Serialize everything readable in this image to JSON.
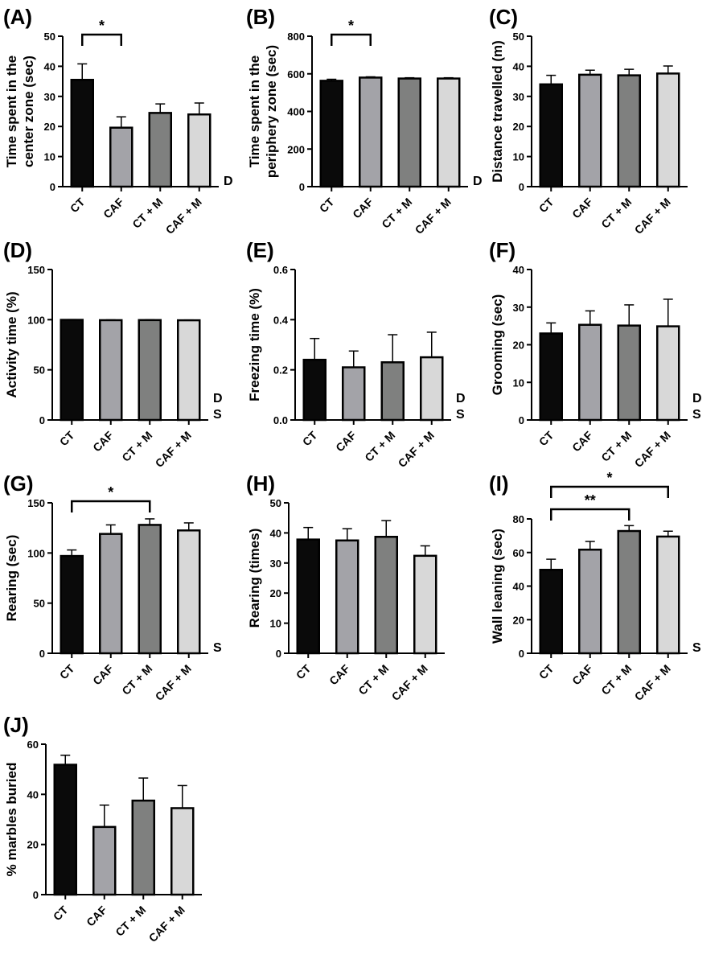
{
  "chart_data": [
    {
      "panel": "(A)",
      "type": "bar",
      "categories": [
        "CT",
        "CAF",
        "CT + M",
        "CAF + M"
      ],
      "values": [
        35.5,
        19.6,
        24.5,
        24.0
      ],
      "errors": [
        5.3,
        3.6,
        3.0,
        3.8
      ],
      "ylabel": [
        "Time spent in the",
        "center zone (sec)"
      ],
      "ylim": [
        0,
        50
      ],
      "yticks": [
        0,
        10,
        20,
        30,
        40,
        50
      ],
      "annotations": [
        {
          "from": 0,
          "to": 1,
          "label": "*"
        }
      ],
      "side_labels": [
        "D"
      ]
    },
    {
      "panel": "(B)",
      "type": "bar",
      "categories": [
        "CT",
        "CAF",
        "CT + M",
        "CAF + M"
      ],
      "values": [
        563,
        580,
        575,
        575
      ],
      "errors": [
        8,
        4,
        4,
        4
      ],
      "ylabel": [
        "Time spent in the",
        "periphery zone (sec)"
      ],
      "ylim": [
        0,
        800
      ],
      "yticks": [
        0,
        200,
        400,
        600,
        800
      ],
      "annotations": [
        {
          "from": 0,
          "to": 1,
          "label": "*"
        }
      ],
      "side_labels": [
        "D"
      ]
    },
    {
      "panel": "(C)",
      "type": "bar",
      "categories": [
        "CT",
        "CAF",
        "CT + M",
        "CAF + M"
      ],
      "values": [
        34.0,
        37.2,
        37.0,
        37.6
      ],
      "errors": [
        3.0,
        1.5,
        2.0,
        2.5
      ],
      "ylabel": [
        "Distance travelled (m)"
      ],
      "ylim": [
        0,
        50
      ],
      "yticks": [
        0,
        10,
        20,
        30,
        40,
        50
      ],
      "annotations": [],
      "side_labels": []
    },
    {
      "panel": "(D)",
      "type": "bar",
      "categories": [
        "CT",
        "CAF",
        "CT + M",
        "CAF + M"
      ],
      "values": [
        99.8,
        99.5,
        99.6,
        99.4
      ],
      "errors": [
        0.3,
        0.3,
        0.3,
        0.3
      ],
      "ylabel": [
        "Activity time (%)"
      ],
      "ylim": [
        0,
        150
      ],
      "yticks": [
        0,
        50,
        100,
        150
      ],
      "annotations": [],
      "side_labels": [
        "D",
        "S"
      ]
    },
    {
      "panel": "(E)",
      "type": "bar",
      "categories": [
        "CT",
        "CAF",
        "CT + M",
        "CAF + M"
      ],
      "values": [
        0.24,
        0.21,
        0.23,
        0.25
      ],
      "errors": [
        0.085,
        0.065,
        0.11,
        0.1
      ],
      "ylabel": [
        "Freezing time (%)"
      ],
      "ylim": [
        0,
        0.6
      ],
      "yticks": [
        "0.0",
        "0.2",
        "0.4",
        "0.6"
      ],
      "annotations": [],
      "side_labels": [
        "D",
        "S"
      ]
    },
    {
      "panel": "(F)",
      "type": "bar",
      "categories": [
        "CT",
        "CAF",
        "CT + M",
        "CAF + M"
      ],
      "values": [
        23.0,
        25.3,
        25.1,
        24.9
      ],
      "errors": [
        2.8,
        3.7,
        5.5,
        7.2
      ],
      "ylabel": [
        "Grooming (sec)"
      ],
      "ylim": [
        0,
        40
      ],
      "yticks": [
        0,
        10,
        20,
        30,
        40
      ],
      "annotations": [],
      "side_labels": [
        "D",
        "S"
      ]
    },
    {
      "panel": "(G)",
      "type": "bar",
      "categories": [
        "CT",
        "CAF",
        "CT + M",
        "CAF + M"
      ],
      "values": [
        97,
        119,
        128,
        122.5
      ],
      "errors": [
        6,
        9,
        6,
        7.5
      ],
      "ylabel": [
        "Rearing (sec)"
      ],
      "ylim": [
        0,
        150
      ],
      "yticks": [
        0,
        50,
        100,
        150
      ],
      "annotations": [
        {
          "from": 0,
          "to": 2,
          "label": "*"
        }
      ],
      "side_labels": [
        "S"
      ]
    },
    {
      "panel": "(H)",
      "type": "bar",
      "categories": [
        "CT",
        "CAF",
        "CT + M",
        "CAF + M"
      ],
      "values": [
        37.8,
        37.5,
        38.7,
        32.4
      ],
      "errors": [
        4.0,
        3.9,
        5.4,
        3.3
      ],
      "ylabel": [
        "Rearing (times)"
      ],
      "ylim": [
        0,
        50
      ],
      "yticks": [
        0,
        10,
        20,
        30,
        40,
        50
      ],
      "annotations": [],
      "side_labels": []
    },
    {
      "panel": "(I)",
      "type": "bar",
      "categories": [
        "CT",
        "CAF",
        "CT + M",
        "CAF + M"
      ],
      "values": [
        49.7,
        61.7,
        72.8,
        69.5
      ],
      "errors": [
        6.3,
        4.9,
        3.2,
        3.2
      ],
      "ylabel": [
        "Wall leaning (sec)"
      ],
      "ylim": [
        0,
        80
      ],
      "yticks": [
        0,
        20,
        40,
        60,
        80
      ],
      "annotations": [
        {
          "from": 0,
          "to": 2,
          "label": "**"
        },
        {
          "from": 0,
          "to": 3,
          "label": "*"
        }
      ],
      "side_labels": [
        "S"
      ]
    },
    {
      "panel": "(J)",
      "type": "bar",
      "categories": [
        "CT",
        "CAF",
        "CT + M",
        "CAF + M"
      ],
      "values": [
        51.8,
        27.0,
        37.5,
        34.5
      ],
      "errors": [
        3.8,
        8.7,
        9.0,
        9.0
      ],
      "ylabel": [
        "% marbles buried"
      ],
      "ylim": [
        0,
        60
      ],
      "yticks": [
        0,
        20,
        40,
        60
      ],
      "annotations": [],
      "side_labels": []
    }
  ],
  "colors": {
    "bars": [
      "#0a0a0a",
      "#a3a3a8",
      "#7f807f",
      "#d8d8d8"
    ],
    "outline": "#000000"
  }
}
